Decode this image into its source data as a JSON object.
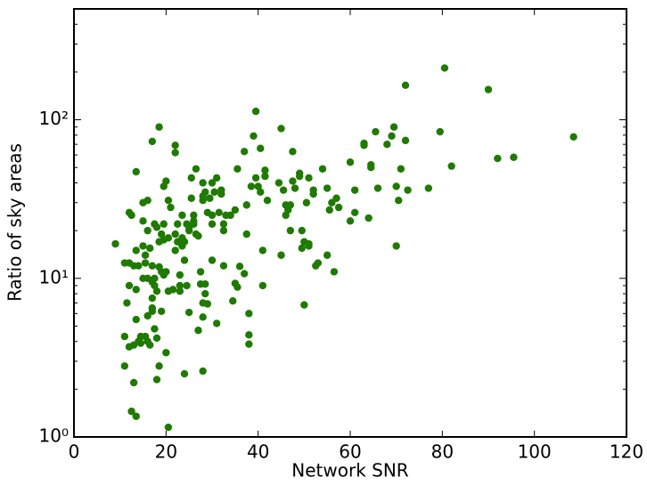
{
  "chart_data": {
    "type": "scatter",
    "x_label": "Network SNR",
    "y_label": "Ratio of sky areas",
    "yscale": "log",
    "color": "#1f7a00",
    "xlim": [
      0,
      120
    ],
    "xticks": [
      0,
      20,
      40,
      60,
      80,
      100,
      120
    ],
    "ylim": [
      1,
      500
    ],
    "yticks": [
      {
        "value": 1,
        "label": "10⁰"
      },
      {
        "value": 10,
        "label": "10¹"
      },
      {
        "value": 100,
        "label": "10²"
      }
    ],
    "yminorticks": [
      2,
      3,
      4,
      5,
      6,
      7,
      8,
      9,
      20,
      30,
      40,
      50,
      60,
      70,
      80,
      90,
      200,
      300,
      400
    ],
    "x": [
      9,
      11,
      11,
      11,
      11.5,
      12,
      12,
      12.5,
      12,
      12,
      12.5,
      13,
      13,
      13,
      13.5,
      13.5,
      13.5,
      13.5,
      13.5,
      14,
      14,
      14.5,
      14.5,
      15,
      15,
      15,
      15,
      15.5,
      15.5,
      15.5,
      16,
      16,
      16,
      16,
      16,
      16.5,
      16.5,
      17,
      17,
      17,
      17,
      17,
      17,
      17.5,
      17.5,
      17.5,
      17.5,
      18,
      18,
      18,
      18,
      18.5,
      18.5,
      18.5,
      18.5,
      19,
      19,
      19,
      19.5,
      19.5,
      19.5,
      19.5,
      20,
      20,
      20,
      20.5,
      20.5,
      20.5,
      20.5,
      21,
      21.5,
      22,
      22,
      22,
      22,
      22.5,
      22.5,
      23,
      23,
      23,
      23.5,
      23.5,
      23.5,
      24,
      24,
      24,
      24.5,
      24.5,
      25,
      25,
      25,
      25.5,
      25.5,
      26,
      26,
      26,
      26.5,
      26.5,
      27,
      27,
      27.5,
      27.5,
      28,
      28,
      28,
      28,
      28,
      28,
      28.5,
      28.5,
      28.5,
      29,
      29,
      29.5,
      30,
      30,
      30,
      30,
      30.5,
      31,
      31,
      31.5,
      32,
      32,
      32.5,
      32.5,
      32.5,
      33,
      34,
      34.5,
      35,
      35,
      35.5,
      35.5,
      36,
      37,
      37,
      37.5,
      37.5,
      38,
      38,
      38,
      38.5,
      39,
      39.5,
      39.5,
      40,
      40.5,
      40.5,
      41,
      41,
      41.5,
      41.5,
      42,
      44.5,
      45,
      45,
      45.5,
      46,
      46,
      46.5,
      47,
      47,
      47.5,
      47.5,
      48,
      49,
      49,
      49.5,
      49.5,
      50,
      50,
      50.5,
      51,
      51,
      51,
      52,
      52,
      52.5,
      53,
      54,
      55,
      55,
      55.5,
      56,
      56.5,
      57,
      57.5,
      60,
      60,
      61,
      61,
      63,
      63,
      64,
      64.5,
      64.5,
      65.5,
      66,
      68,
      69,
      69.5,
      70,
      70,
      70.5,
      71,
      72,
      72,
      72.5,
      77,
      79.5,
      80.5,
      82,
      90,
      92,
      95.5,
      108.5
    ],
    "values": [
      16.5,
      12.5,
      4.3,
      2.8,
      7,
      9,
      26,
      25,
      12.5,
      3.7,
      1.45,
      3.8,
      12,
      2.2,
      1.35,
      5.5,
      8.5,
      15,
      47,
      12,
      4,
      4.3,
      3.9,
      23,
      16,
      30,
      10,
      12.5,
      14,
      4.3,
      31,
      20,
      10,
      5.8,
      4,
      3.8,
      15.5,
      73,
      12,
      9.5,
      7.5,
      6.5,
      6.2,
      4.8,
      22,
      9,
      10,
      4.2,
      21,
      8.3,
      2.3,
      90,
      11.8,
      17,
      2.8,
      19,
      11,
      6.2,
      38,
      22,
      17.5,
      10.5,
      41,
      3.4,
      11,
      31,
      8.3,
      18,
      1.15,
      28,
      8.5,
      62,
      69,
      19,
      15,
      17,
      22,
      10.5,
      8.3,
      9,
      18,
      16,
      25,
      2.5,
      13,
      17,
      22,
      9,
      6.1,
      20,
      21,
      43,
      32,
      22,
      25,
      23,
      19,
      49,
      4.7,
      18.5,
      9.2,
      11,
      31,
      40,
      33,
      2.6,
      5.7,
      7,
      35,
      9.2,
      8,
      6.9,
      26,
      32,
      13,
      25,
      22,
      40,
      35,
      5.2,
      43,
      26,
      34,
      36,
      22,
      20,
      12,
      25,
      25,
      7.2,
      9.3,
      27,
      49,
      8.8,
      11.9,
      10.7,
      63,
      29,
      19,
      4.4,
      3.85,
      6,
      38,
      79,
      43,
      113,
      38,
      35,
      66,
      15,
      9,
      48,
      44,
      31,
      40,
      14,
      88,
      36,
      25,
      29,
      27,
      29,
      20,
      63,
      41,
      37,
      46,
      44,
      20,
      15.5,
      17,
      6.8,
      30,
      16,
      16.5,
      43,
      34,
      36,
      12,
      12.5,
      49,
      14,
      37,
      27,
      30,
      11,
      32,
      28,
      54,
      23,
      26,
      36,
      71,
      69,
      24,
      50,
      52,
      84,
      37,
      70,
      79,
      90,
      38,
      16,
      31,
      49,
      165,
      74,
      36,
      37,
      84,
      212,
      51,
      155,
      57,
      58,
      78
    ]
  }
}
